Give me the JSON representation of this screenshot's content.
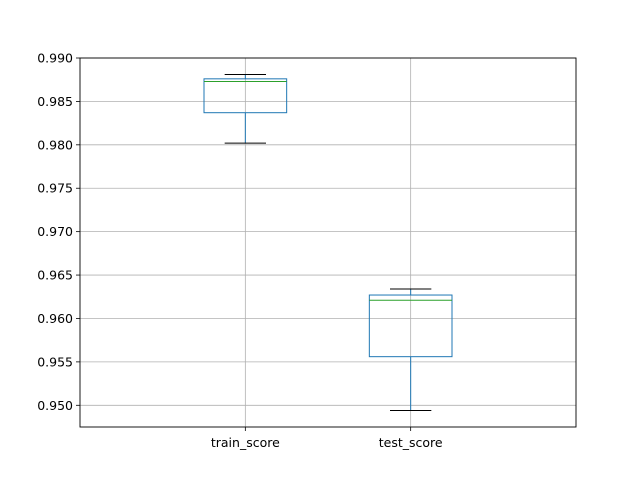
{
  "chart_data": {
    "type": "box",
    "categories": [
      "train_score",
      "test_score"
    ],
    "boxes": [
      {
        "name": "train_score",
        "whisker_low": 0.9802,
        "q1": 0.9837,
        "median": 0.9873,
        "q3": 0.9876,
        "whisker_high": 0.9881
      },
      {
        "name": "test_score",
        "whisker_low": 0.9494,
        "q1": 0.9556,
        "median": 0.9621,
        "q3": 0.9627,
        "whisker_high": 0.9634
      }
    ],
    "title": "",
    "xlabel": "",
    "ylabel": "",
    "ylim": [
      0.9475,
      0.99
    ],
    "yticks": [
      0.95,
      0.955,
      0.96,
      0.965,
      0.97,
      0.975,
      0.98,
      0.985,
      0.99
    ],
    "ytick_labels": [
      "0.950",
      "0.955",
      "0.960",
      "0.965",
      "0.970",
      "0.975",
      "0.980",
      "0.985",
      "0.990"
    ],
    "grid": true,
    "colors": {
      "box": "#1f77b4",
      "median": "#2ca02c",
      "whisker_cap": "#000000",
      "grid": "#b0b0b0"
    }
  }
}
